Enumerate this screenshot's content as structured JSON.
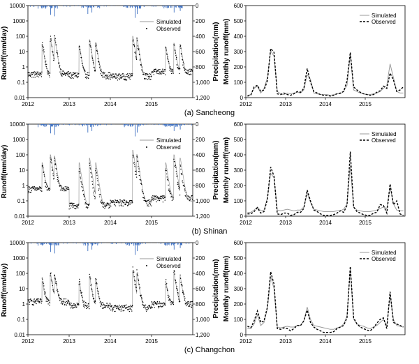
{
  "colors": {
    "precipitation": "#3d6fc0",
    "simulated": "#9a9a9a",
    "observed": "#000000"
  },
  "chart_data": [
    {
      "panel": "(a) Sancheong",
      "daily": {
        "type": "line",
        "ylabel": "Runoff(mm/day)",
        "y2label": "Precipitation(mm)",
        "yscale": "log",
        "ylim": [
          0.01,
          10000
        ],
        "yticks": [
          "10000",
          "1000",
          "100",
          "10",
          "1",
          "0.1",
          "0.01"
        ],
        "y2lim": [
          0,
          1200
        ],
        "y2ticks": [
          "0",
          "200",
          "400",
          "600",
          "800",
          "1,000",
          "1,200"
        ],
        "xlim": [
          2012,
          2016
        ],
        "xticks": [
          "2012",
          "2013",
          "2014",
          "2015"
        ],
        "legend": [
          "Simulated",
          "Observed"
        ],
        "legend_position": "top-right",
        "baseflow": [
          0.35,
          0.3,
          0.25,
          0.5
        ],
        "peaks": [
          [
            2012.35,
            30,
            40
          ],
          [
            2012.55,
            70,
            80
          ],
          [
            2012.65,
            80,
            90
          ],
          [
            2013.25,
            25,
            20
          ],
          [
            2013.5,
            60,
            40
          ],
          [
            2013.65,
            40,
            30
          ],
          [
            2014.55,
            100,
            80
          ],
          [
            2014.65,
            80,
            60
          ],
          [
            2015.35,
            20,
            15
          ],
          [
            2015.55,
            35,
            25
          ],
          [
            2015.7,
            30,
            20
          ]
        ],
        "precip_events": [
          [
            2012.25,
            40
          ],
          [
            2012.55,
            120
          ],
          [
            2012.65,
            140
          ],
          [
            2013.45,
            110
          ],
          [
            2013.55,
            90
          ],
          [
            2014.6,
            160
          ],
          [
            2014.65,
            110
          ],
          [
            2015.55,
            90
          ],
          [
            2015.7,
            70
          ]
        ]
      },
      "monthly": {
        "type": "line",
        "ylabel": "Monthly runoff(mm)",
        "ylim": [
          0,
          600
        ],
        "yticks": [
          "0",
          "100",
          "200",
          "300",
          "400",
          "500",
          "600"
        ],
        "xlim": [
          2012,
          2016
        ],
        "xticks": [
          "2012",
          "2013",
          "2014",
          "2015"
        ],
        "legend_position": "top-right",
        "series": [
          {
            "name": "Simulated",
            "values": [
              15,
              20,
              60,
              75,
              30,
              60,
              130,
              305,
              270,
              40,
              25,
              20,
              30,
              25,
              30,
              35,
              30,
              50,
              150,
              120,
              30,
              25,
              20,
              20,
              20,
              15,
              20,
              25,
              25,
              40,
              80,
              280,
              50,
              40,
              30,
              25,
              20,
              20,
              25,
              30,
              40,
              60,
              80,
              220,
              130,
              40,
              30,
              30
            ]
          },
          {
            "name": "Observed",
            "values": [
              10,
              15,
              70,
              80,
              40,
              50,
              110,
              320,
              295,
              25,
              20,
              30,
              20,
              15,
              25,
              40,
              35,
              60,
              190,
              100,
              40,
              30,
              20,
              15,
              15,
              10,
              15,
              25,
              30,
              40,
              110,
              295,
              70,
              50,
              35,
              25,
              20,
              15,
              20,
              35,
              45,
              75,
              60,
              160,
              115,
              40,
              50,
              70
            ]
          }
        ]
      }
    },
    {
      "panel": "(b) Shinan",
      "daily": {
        "type": "line",
        "ylabel": "Runoff(mm/day)",
        "y2label": "Precipitation(mm)",
        "yscale": "log",
        "ylim": [
          0.01,
          10000
        ],
        "yticks": [
          "10000",
          "1000",
          "100",
          "10",
          "1",
          "0.1",
          "0.01"
        ],
        "y2lim": [
          0,
          1200
        ],
        "y2ticks": [
          "0",
          "200",
          "400",
          "600",
          "800",
          "1,000",
          "1,200"
        ],
        "xlim": [
          2012,
          2016
        ],
        "xticks": [
          "2012",
          "2013",
          "2014",
          "2015"
        ],
        "legend": [
          "Simulated",
          "Observed"
        ],
        "legend_position": "top-right",
        "baseflow": [
          0.6,
          0.05,
          0.08,
          0.15
        ],
        "peaks": [
          [
            2012.35,
            30,
            20
          ],
          [
            2012.55,
            100,
            60
          ],
          [
            2012.65,
            80,
            40
          ],
          [
            2013.25,
            30,
            10
          ],
          [
            2013.5,
            60,
            20
          ],
          [
            2013.65,
            30,
            10
          ],
          [
            2014.55,
            200,
            100
          ],
          [
            2014.65,
            100,
            60
          ],
          [
            2015.35,
            30,
            10
          ],
          [
            2015.55,
            100,
            50
          ],
          [
            2015.7,
            60,
            20
          ]
        ],
        "precip_events": [
          [
            2012.25,
            40
          ],
          [
            2012.55,
            120
          ],
          [
            2012.65,
            140
          ],
          [
            2013.45,
            110
          ],
          [
            2013.55,
            90
          ],
          [
            2014.6,
            160
          ],
          [
            2014.65,
            110
          ],
          [
            2015.55,
            90
          ],
          [
            2015.7,
            70
          ]
        ]
      },
      "monthly": {
        "type": "line",
        "ylabel": "Monthly runoff(mm)",
        "ylim": [
          0,
          600
        ],
        "yticks": [
          "0",
          "100",
          "200",
          "300",
          "400",
          "500",
          "600"
        ],
        "xlim": [
          2012,
          2016
        ],
        "xticks": [
          "2012",
          "2013",
          "2014",
          "2015"
        ],
        "legend_position": "top-right",
        "series": [
          {
            "name": "Simulated",
            "values": [
              25,
              25,
              40,
              60,
              35,
              40,
              120,
              280,
              250,
              40,
              35,
              40,
              45,
              40,
              35,
              40,
              40,
              60,
              150,
              90,
              45,
              40,
              35,
              30,
              30,
              30,
              30,
              35,
              35,
              45,
              80,
              330,
              60,
              40,
              35,
              30,
              30,
              30,
              35,
              40,
              50,
              60,
              50,
              190,
              80,
              40,
              35,
              35
            ]
          },
          {
            "name": "Observed",
            "values": [
              15,
              15,
              30,
              55,
              20,
              30,
              110,
              320,
              260,
              15,
              10,
              20,
              20,
              5,
              10,
              25,
              25,
              50,
              170,
              100,
              40,
              30,
              15,
              5,
              5,
              5,
              10,
              20,
              35,
              25,
              70,
              420,
              60,
              30,
              20,
              10,
              5,
              5,
              20,
              25,
              75,
              70,
              20,
              210,
              75,
              100,
              15,
              5
            ]
          }
        ]
      }
    },
    {
      "panel": "(c) Changchon",
      "daily": {
        "type": "line",
        "ylabel": "Runoff(mm/day)",
        "y2label": "Precipitation(mm)",
        "yscale": "log",
        "ylim": [
          0.01,
          10000
        ],
        "yticks": [
          "10000",
          "1000",
          "100",
          "10",
          "1",
          "0.1",
          "0.01"
        ],
        "y2lim": [
          0,
          1200
        ],
        "y2ticks": [
          "0",
          "200",
          "400",
          "600",
          "800",
          "1,000",
          "1,200"
        ],
        "xlim": [
          2012,
          2016
        ],
        "xticks": [
          "2012",
          "2013",
          "2014",
          "2015"
        ],
        "legend": [
          "Simulated",
          "Observed"
        ],
        "legend_position": "top-right",
        "baseflow": [
          1.5,
          0.8,
          0.6,
          1.0
        ],
        "peaks": [
          [
            2012.35,
            30,
            40
          ],
          [
            2012.55,
            100,
            120
          ],
          [
            2012.65,
            80,
            90
          ],
          [
            2013.25,
            30,
            30
          ],
          [
            2013.5,
            60,
            70
          ],
          [
            2013.65,
            40,
            40
          ],
          [
            2014.55,
            150,
            200
          ],
          [
            2014.65,
            100,
            120
          ],
          [
            2015.35,
            30,
            30
          ],
          [
            2015.55,
            100,
            120
          ],
          [
            2015.7,
            60,
            70
          ]
        ],
        "precip_events": [
          [
            2012.25,
            40
          ],
          [
            2012.55,
            120
          ],
          [
            2012.65,
            140
          ],
          [
            2013.45,
            110
          ],
          [
            2013.55,
            90
          ],
          [
            2014.6,
            160
          ],
          [
            2014.65,
            110
          ],
          [
            2015.55,
            90
          ],
          [
            2015.7,
            70
          ]
        ]
      },
      "monthly": {
        "type": "line",
        "ylabel": "Monthly runoff(mm)",
        "ylim": [
          0,
          600
        ],
        "yticks": [
          "0",
          "100",
          "200",
          "300",
          "400",
          "500",
          "600"
        ],
        "xlim": [
          2012,
          2016
        ],
        "xticks": [
          "2012",
          "2013",
          "2014",
          "2015"
        ],
        "legend_position": "top-right",
        "series": [
          {
            "name": "Simulated",
            "values": [
              40,
              40,
              70,
              130,
              60,
              80,
              170,
              380,
              300,
              50,
              45,
              50,
              55,
              50,
              50,
              60,
              60,
              90,
              180,
              100,
              60,
              55,
              50,
              45,
              40,
              35,
              35,
              45,
              50,
              70,
              120,
              430,
              100,
              70,
              60,
              55,
              45,
              40,
              50,
              60,
              80,
              100,
              60,
              260,
              100,
              60,
              55,
              50
            ]
          },
          {
            "name": "Observed",
            "values": [
              55,
              45,
              90,
              155,
              80,
              90,
              180,
              410,
              330,
              40,
              35,
              45,
              40,
              25,
              40,
              60,
              60,
              90,
              160,
              80,
              50,
              35,
              25,
              15,
              15,
              15,
              20,
              40,
              50,
              60,
              110,
              445,
              110,
              70,
              50,
              40,
              30,
              25,
              45,
              75,
              100,
              110,
              40,
              280,
              80,
              70,
              60,
              50
            ]
          }
        ]
      }
    }
  ]
}
